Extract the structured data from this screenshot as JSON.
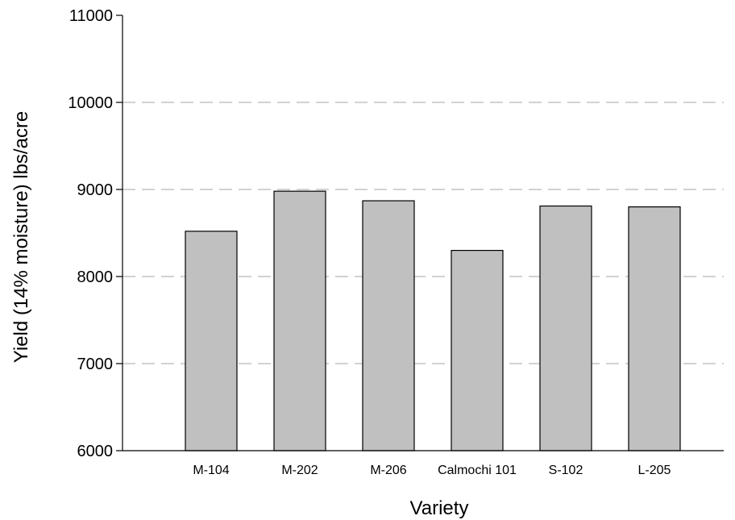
{
  "chart_data": {
    "type": "bar",
    "title": "",
    "xlabel": "Variety",
    "ylabel": "Yield (14% moisture) lbs/acre",
    "categories": [
      "M-104",
      "M-202",
      "M-206",
      "Calmochi 101",
      "S-102",
      "L-205"
    ],
    "values": [
      8520,
      8980,
      8870,
      8300,
      8810,
      8800
    ],
    "ylim": [
      6000,
      11000
    ],
    "yticks": [
      "6000",
      "7000",
      "8000",
      "9000",
      "10000",
      "11000"
    ],
    "grid": "dashed horizontal gridlines",
    "legend": "none",
    "colors": {
      "bar_fill": "#c0c0c0",
      "bar_stroke": "#000000",
      "grid": "#b8b8b8",
      "axis": "#000000"
    }
  }
}
